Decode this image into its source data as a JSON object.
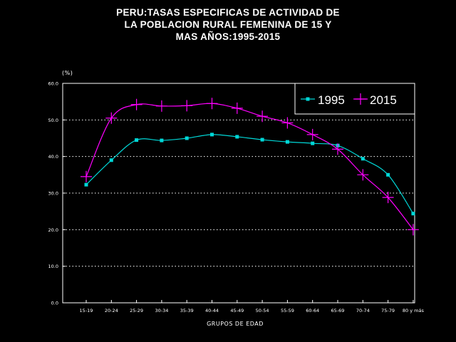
{
  "chart_data": {
    "type": "line",
    "title_lines": [
      "PERU:TASAS ESPECIFICAS DE ACTIVIDAD DE",
      "LA POBLACION RURAL FEMENINA DE 15 Y",
      "MAS AÑOS:1995-2015"
    ],
    "xlabel": "GRUPOS DE EDAD",
    "ylabel": "(%)",
    "categories": [
      "15-19",
      "20-24",
      "25-29",
      "30-34",
      "35-39",
      "40-44",
      "45-49",
      "50-54",
      "55-59",
      "60-64",
      "65-69",
      "70-74",
      "75-79",
      "80 y más"
    ],
    "ylim": [
      0,
      60
    ],
    "yticks": [
      "0.0",
      "10.0",
      "20.0",
      "30.0",
      "40.0",
      "50.0",
      "60.0"
    ],
    "grid": "horizontal dotted",
    "legend_position": "top-right",
    "series": [
      {
        "name": "1995",
        "color": "#00d8d8",
        "marker": "square",
        "values": [
          32.3,
          39.0,
          44.5,
          44.4,
          45.0,
          46.0,
          45.4,
          44.6,
          44.0,
          43.6,
          43.0,
          39.4,
          35.0,
          24.4
        ]
      },
      {
        "name": "2015",
        "color": "#ff00ff",
        "marker": "plus",
        "values": [
          34.5,
          50.5,
          54.2,
          53.8,
          53.9,
          54.5,
          53.2,
          51.0,
          49.2,
          46.0,
          42.0,
          35.0,
          28.8,
          20.0
        ]
      }
    ]
  }
}
